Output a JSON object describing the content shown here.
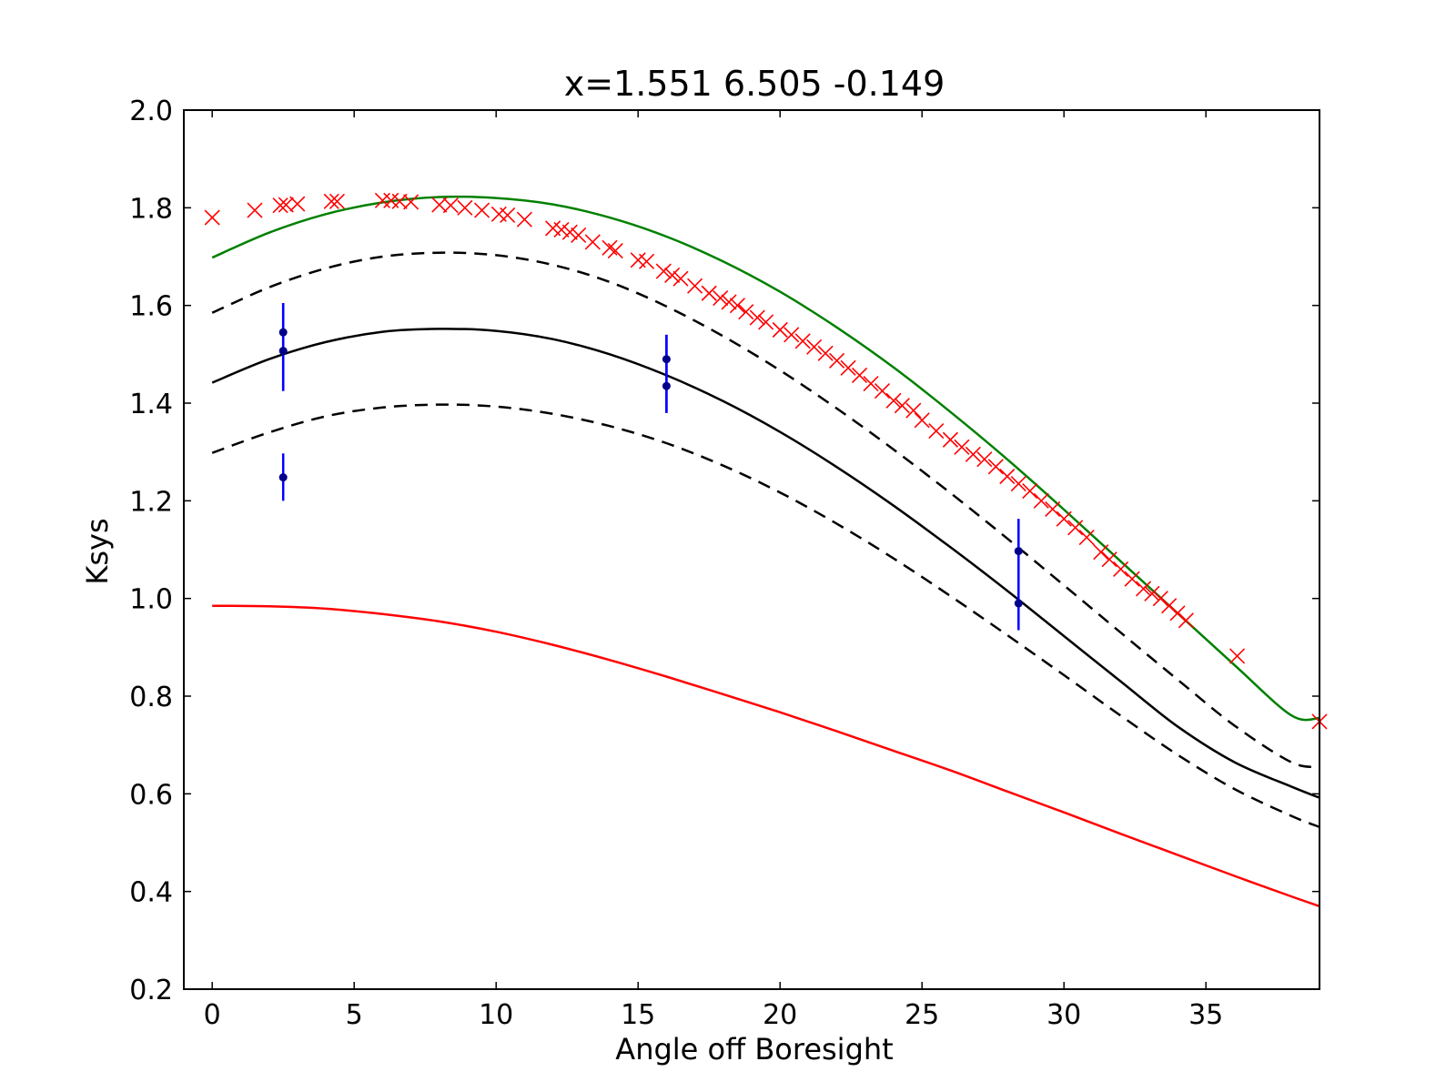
{
  "chart_data": {
    "type": "line",
    "title": "x=1.551 6.505 -0.149",
    "xlabel": "Angle off Boresight",
    "ylabel": "Ksys",
    "xlim": [
      -1,
      39
    ],
    "ylim": [
      0.2,
      2.0
    ],
    "xticks": [
      0,
      5,
      10,
      15,
      20,
      25,
      30,
      35
    ],
    "yticks": [
      0.2,
      0.4,
      0.6,
      0.8,
      1.0,
      1.2,
      1.4,
      1.6,
      1.8,
      2.0
    ],
    "grid": false,
    "legend": "none",
    "series": [
      {
        "kind": "line",
        "style": "solid",
        "color": "#008000",
        "x": [
          0,
          2,
          4,
          6,
          8,
          10,
          12,
          14,
          16,
          18,
          20,
          22,
          24,
          26,
          28,
          30,
          32,
          34,
          36,
          38,
          39
        ],
        "y": [
          1.698,
          1.749,
          1.787,
          1.811,
          1.822,
          1.82,
          1.807,
          1.78,
          1.741,
          1.69,
          1.628,
          1.555,
          1.473,
          1.382,
          1.285,
          1.182,
          1.076,
          0.97,
          0.864,
          0.761,
          0.755
        ]
      },
      {
        "kind": "line",
        "style": "dashed",
        "color": "#000000",
        "x": [
          0,
          2,
          4,
          6,
          8,
          10,
          12,
          14,
          16,
          18,
          20,
          22,
          24,
          26,
          28,
          30,
          32,
          34,
          36,
          38,
          39
        ],
        "y": [
          1.585,
          1.637,
          1.676,
          1.7,
          1.708,
          1.703,
          1.683,
          1.648,
          1.598,
          1.537,
          1.467,
          1.389,
          1.305,
          1.216,
          1.123,
          1.027,
          0.93,
          0.834,
          0.74,
          0.665,
          0.655
        ]
      },
      {
        "kind": "line",
        "style": "solid",
        "color": "#000000",
        "x": [
          0,
          2,
          4,
          6,
          8,
          10,
          12,
          14,
          16,
          18,
          20,
          22,
          24,
          26,
          28,
          30,
          32,
          34,
          36,
          38,
          39
        ],
        "y": [
          1.442,
          1.49,
          1.525,
          1.546,
          1.552,
          1.548,
          1.531,
          1.5,
          1.457,
          1.404,
          1.341,
          1.269,
          1.19,
          1.105,
          1.016,
          0.923,
          0.83,
          0.738,
          0.665,
          0.615,
          0.592
        ]
      },
      {
        "kind": "line",
        "style": "dashed",
        "color": "#000000",
        "x": [
          0,
          2,
          4,
          6,
          8,
          10,
          12,
          14,
          16,
          18,
          20,
          22,
          24,
          26,
          28,
          30,
          32,
          34,
          36,
          38,
          39
        ],
        "y": [
          1.298,
          1.34,
          1.373,
          1.391,
          1.397,
          1.393,
          1.378,
          1.353,
          1.318,
          1.272,
          1.217,
          1.153,
          1.082,
          1.005,
          0.925,
          0.843,
          0.76,
          0.68,
          0.61,
          0.555,
          0.532
        ]
      },
      {
        "kind": "line",
        "style": "solid",
        "color": "#ff0000",
        "x": [
          0,
          2,
          4,
          6,
          8,
          10,
          12,
          14,
          16,
          18,
          20,
          22,
          24,
          26,
          28,
          30,
          32,
          34,
          36,
          38,
          39
        ],
        "y": [
          0.985,
          0.984,
          0.979,
          0.968,
          0.953,
          0.932,
          0.905,
          0.874,
          0.84,
          0.804,
          0.767,
          0.728,
          0.688,
          0.648,
          0.605,
          0.562,
          0.518,
          0.475,
          0.432,
          0.39,
          0.37
        ]
      },
      {
        "kind": "markers",
        "marker": "x",
        "color": "#ff0000",
        "x": [
          0,
          1.5,
          2.4,
          2.6,
          3.0,
          4.2,
          4.4,
          6.0,
          6.3,
          6.6,
          7.0,
          8.0,
          8.4,
          8.9,
          9.5,
          10.1,
          10.4,
          11.0,
          12.0,
          12.3,
          12.6,
          12.9,
          13.4,
          14.0,
          14.2,
          15.0,
          15.3,
          15.9,
          16.2,
          16.5,
          17.0,
          17.5,
          17.9,
          18.2,
          18.5,
          18.8,
          19.2,
          19.5,
          20.0,
          20.4,
          20.8,
          21.2,
          21.6,
          22.0,
          22.4,
          22.8,
          23.2,
          23.6,
          24.0,
          24.3,
          24.7,
          25.0,
          25.5,
          26.0,
          26.4,
          26.8,
          27.2,
          27.6,
          28.0,
          28.4,
          28.8,
          29.2,
          29.6,
          30.0,
          30.4,
          30.8,
          31.3,
          31.6,
          32.0,
          32.4,
          32.8,
          33.1,
          33.4,
          33.7,
          34.0,
          34.3,
          36.1,
          39.0
        ],
        "y": [
          1.78,
          1.795,
          1.805,
          1.806,
          1.808,
          1.813,
          1.813,
          1.815,
          1.815,
          1.813,
          1.812,
          1.806,
          1.805,
          1.8,
          1.795,
          1.787,
          1.785,
          1.776,
          1.758,
          1.755,
          1.75,
          1.744,
          1.73,
          1.718,
          1.712,
          1.693,
          1.69,
          1.67,
          1.662,
          1.655,
          1.64,
          1.625,
          1.615,
          1.607,
          1.6,
          1.587,
          1.575,
          1.566,
          1.55,
          1.54,
          1.527,
          1.515,
          1.502,
          1.487,
          1.472,
          1.457,
          1.44,
          1.425,
          1.405,
          1.395,
          1.385,
          1.365,
          1.343,
          1.325,
          1.31,
          1.295,
          1.285,
          1.27,
          1.25,
          1.235,
          1.22,
          1.2,
          1.183,
          1.163,
          1.145,
          1.125,
          1.095,
          1.08,
          1.06,
          1.04,
          1.02,
          1.01,
          1.0,
          0.985,
          0.97,
          0.955,
          0.882,
          0.748
        ]
      },
      {
        "kind": "errorbar",
        "marker": "dot",
        "color": "#0000ff",
        "markercolor": "#00008b",
        "x": [
          2.5,
          2.5,
          2.5,
          16.0,
          16.0,
          28.4,
          28.4
        ],
        "y": [
          1.545,
          1.507,
          1.248,
          1.49,
          1.435,
          1.097,
          0.99
        ],
        "ylow": [
          1.425,
          1.425,
          1.2,
          1.38,
          1.38,
          0.935,
          0.935
        ],
        "yhigh": [
          1.605,
          1.605,
          1.297,
          1.54,
          1.54,
          1.163,
          1.163
        ]
      }
    ]
  }
}
